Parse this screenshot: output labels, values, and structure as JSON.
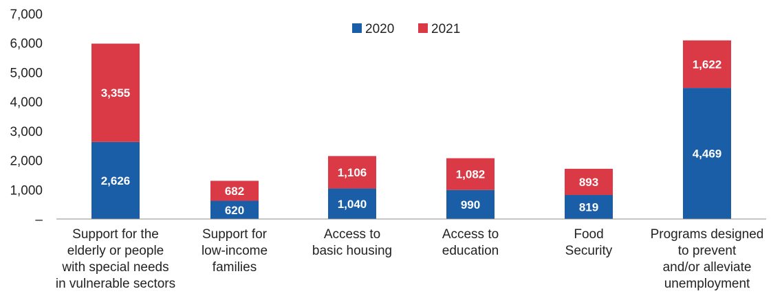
{
  "chart_data": {
    "type": "bar",
    "stacked": true,
    "categories": [
      [
        "Support for the",
        "elderly or people",
        "with special needs",
        "in vulnerable sectors"
      ],
      [
        "Support for",
        "low-income",
        "families"
      ],
      [
        "Access to",
        "basic housing"
      ],
      [
        "Access to",
        "education"
      ],
      [
        "Food",
        "Security"
      ],
      [
        "Programs designed",
        "to prevent",
        "and/or alleviate",
        "unemployment"
      ]
    ],
    "series": [
      {
        "name": "2020",
        "color": "#1a5ea8",
        "values": [
          2626,
          620,
          1040,
          990,
          819,
          4469
        ]
      },
      {
        "name": "2021",
        "color": "#d93a45",
        "values": [
          3355,
          682,
          1106,
          1082,
          893,
          1622
        ]
      }
    ],
    "data_labels": [
      [
        "2,626",
        "620",
        "1,040",
        "990",
        "819",
        "4,469"
      ],
      [
        "3,355",
        "682",
        "1,106",
        "1,082",
        "893",
        "1,622"
      ]
    ],
    "yticks": [
      0,
      1000,
      2000,
      3000,
      4000,
      5000,
      6000,
      7000
    ],
    "ytick_labels": [
      "–",
      "1,000",
      "2,000",
      "3,000",
      "4,000",
      "5,000",
      "6,000",
      "7,000"
    ],
    "ylim": [
      0,
      7000
    ],
    "legend_position": "top-center",
    "grid": false
  }
}
